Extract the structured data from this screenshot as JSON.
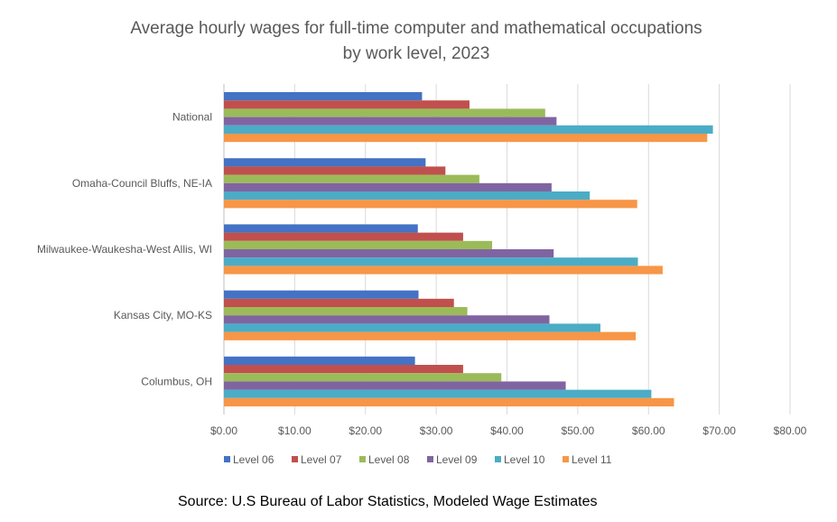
{
  "chart_data": {
    "type": "bar",
    "orientation": "horizontal",
    "title": "Average hourly wages for full-time computer and mathematical occupations",
    "subtitle": "by work level, 2023",
    "categories": [
      "National",
      "Omaha-Council Bluffs, NE-IA",
      "Milwaukee-Waukesha-West Allis, WI",
      "Kansas City, MO-KS",
      "Columbus, OH"
    ],
    "x_ticks": [
      "$0.00",
      "$10.00",
      "$20.00",
      "$30.00",
      "$40.00",
      "$50.00",
      "$60.00",
      "$70.00",
      "$80.00"
    ],
    "xlim": [
      0,
      80
    ],
    "grid": true,
    "legend_position": "bottom",
    "series": [
      {
        "name": "Level 06",
        "color": "#4472C4",
        "values": [
          28.0,
          28.5,
          27.4,
          27.5,
          27.0
        ]
      },
      {
        "name": "Level 07",
        "color": "#C0504D",
        "values": [
          34.7,
          31.3,
          33.8,
          32.5,
          33.8
        ]
      },
      {
        "name": "Level 08",
        "color": "#9BBB59",
        "values": [
          45.4,
          36.1,
          37.9,
          34.4,
          39.2
        ]
      },
      {
        "name": "Level 09",
        "color": "#8064A2",
        "values": [
          47.0,
          46.3,
          46.6,
          46.0,
          48.3
        ]
      },
      {
        "name": "Level 10",
        "color": "#4BACC6",
        "values": [
          69.1,
          51.7,
          58.5,
          53.2,
          60.4
        ]
      },
      {
        "name": "Level 11",
        "color": "#F79646",
        "values": [
          68.3,
          58.4,
          62.0,
          58.2,
          63.6
        ]
      }
    ]
  },
  "source": "Source: U.S Bureau of Labor Statistics, Modeled Wage Estimates"
}
